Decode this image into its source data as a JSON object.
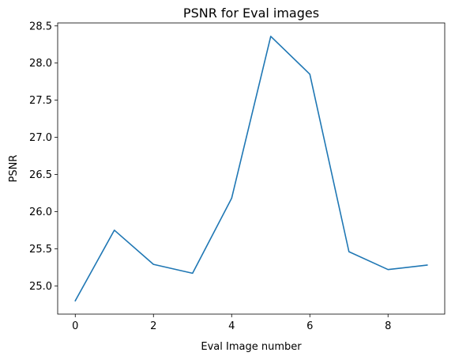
{
  "chart_data": {
    "type": "line",
    "title": "PSNR for Eval images",
    "xlabel": "Eval Image number",
    "ylabel": "PSNR",
    "x": [
      0,
      1,
      2,
      3,
      4,
      5,
      6,
      7,
      8,
      9
    ],
    "series": [
      {
        "values": [
          24.8,
          25.75,
          25.29,
          25.17,
          26.18,
          28.36,
          27.85,
          25.46,
          25.22,
          25.28
        ],
        "color": "#1f77b4"
      }
    ],
    "xlim": [
      -0.45,
      9.45
    ],
    "ylim": [
      24.62,
      28.54
    ],
    "xticks": [
      0,
      2,
      4,
      6,
      8
    ],
    "xtick_labels": [
      "0",
      "2",
      "4",
      "6",
      "8"
    ],
    "yticks": [
      25.0,
      25.5,
      26.0,
      26.5,
      27.0,
      27.5,
      28.0,
      28.5
    ],
    "ytick_labels": [
      "25.0",
      "25.5",
      "26.0",
      "26.5",
      "27.0",
      "27.5",
      "28.0",
      "28.5"
    ],
    "grid": false,
    "legend": "none"
  }
}
